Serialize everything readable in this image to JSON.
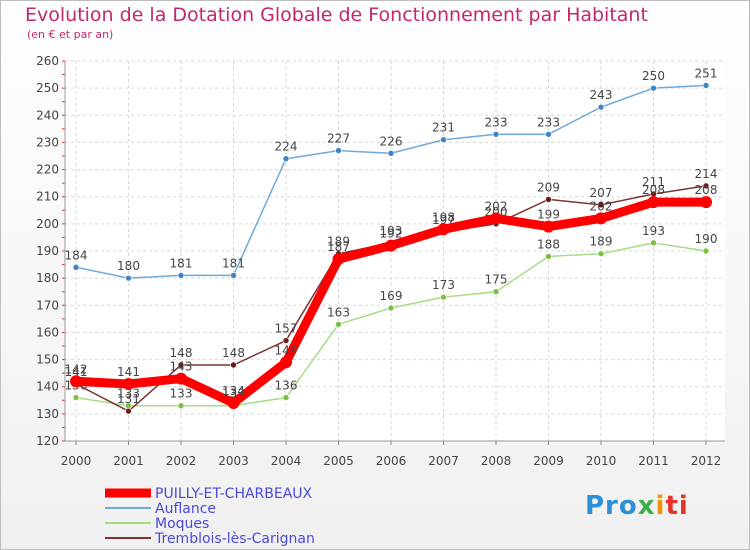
{
  "chart_data": {
    "type": "line",
    "title": "Evolution de la Dotation Globale de Fonctionnement par Habitant",
    "subtitle": "(en € et par an)",
    "xlabel": "",
    "ylabel": "",
    "ylim": [
      120,
      260
    ],
    "yticks": [
      120,
      130,
      140,
      150,
      160,
      170,
      180,
      190,
      200,
      210,
      220,
      230,
      240,
      250,
      260
    ],
    "categories": [
      "2000",
      "2001",
      "2002",
      "2003",
      "2004",
      "2005",
      "2006",
      "2007",
      "2008",
      "2009",
      "2010",
      "2011",
      "2012"
    ],
    "legend_position": "bottom-left",
    "series": [
      {
        "name": "Auflance",
        "color": "#6fa8dc",
        "point_color": "#3d85c6",
        "values": [
          184,
          180,
          181,
          181,
          224,
          227,
          226,
          231,
          233,
          233,
          243,
          250,
          251
        ]
      },
      {
        "name": "Moques",
        "color": "#a6dc84",
        "point_color": "#7ac142",
        "values": [
          136,
          133,
          133,
          133,
          136,
          163,
          169,
          173,
          175,
          188,
          189,
          193,
          190
        ]
      },
      {
        "name": "Tremblois-lès-Carignan",
        "color": "#7f3434",
        "point_color": "#6b1818",
        "values": [
          141,
          131,
          148,
          148,
          157,
          189,
          193,
          197,
          200,
          209,
          207,
          211,
          214
        ]
      },
      {
        "name": "PUILLY-ET-CHARBEAUX",
        "color": "#ff0000",
        "point_color": "#ff0000",
        "values": [
          142,
          141,
          143,
          134,
          149,
          187,
          192,
          198,
          202,
          199,
          202,
          208,
          208
        ]
      }
    ]
  },
  "logo": {
    "p1": "Pro",
    "p2": "x",
    "p3": "i",
    "p4": "ti"
  }
}
